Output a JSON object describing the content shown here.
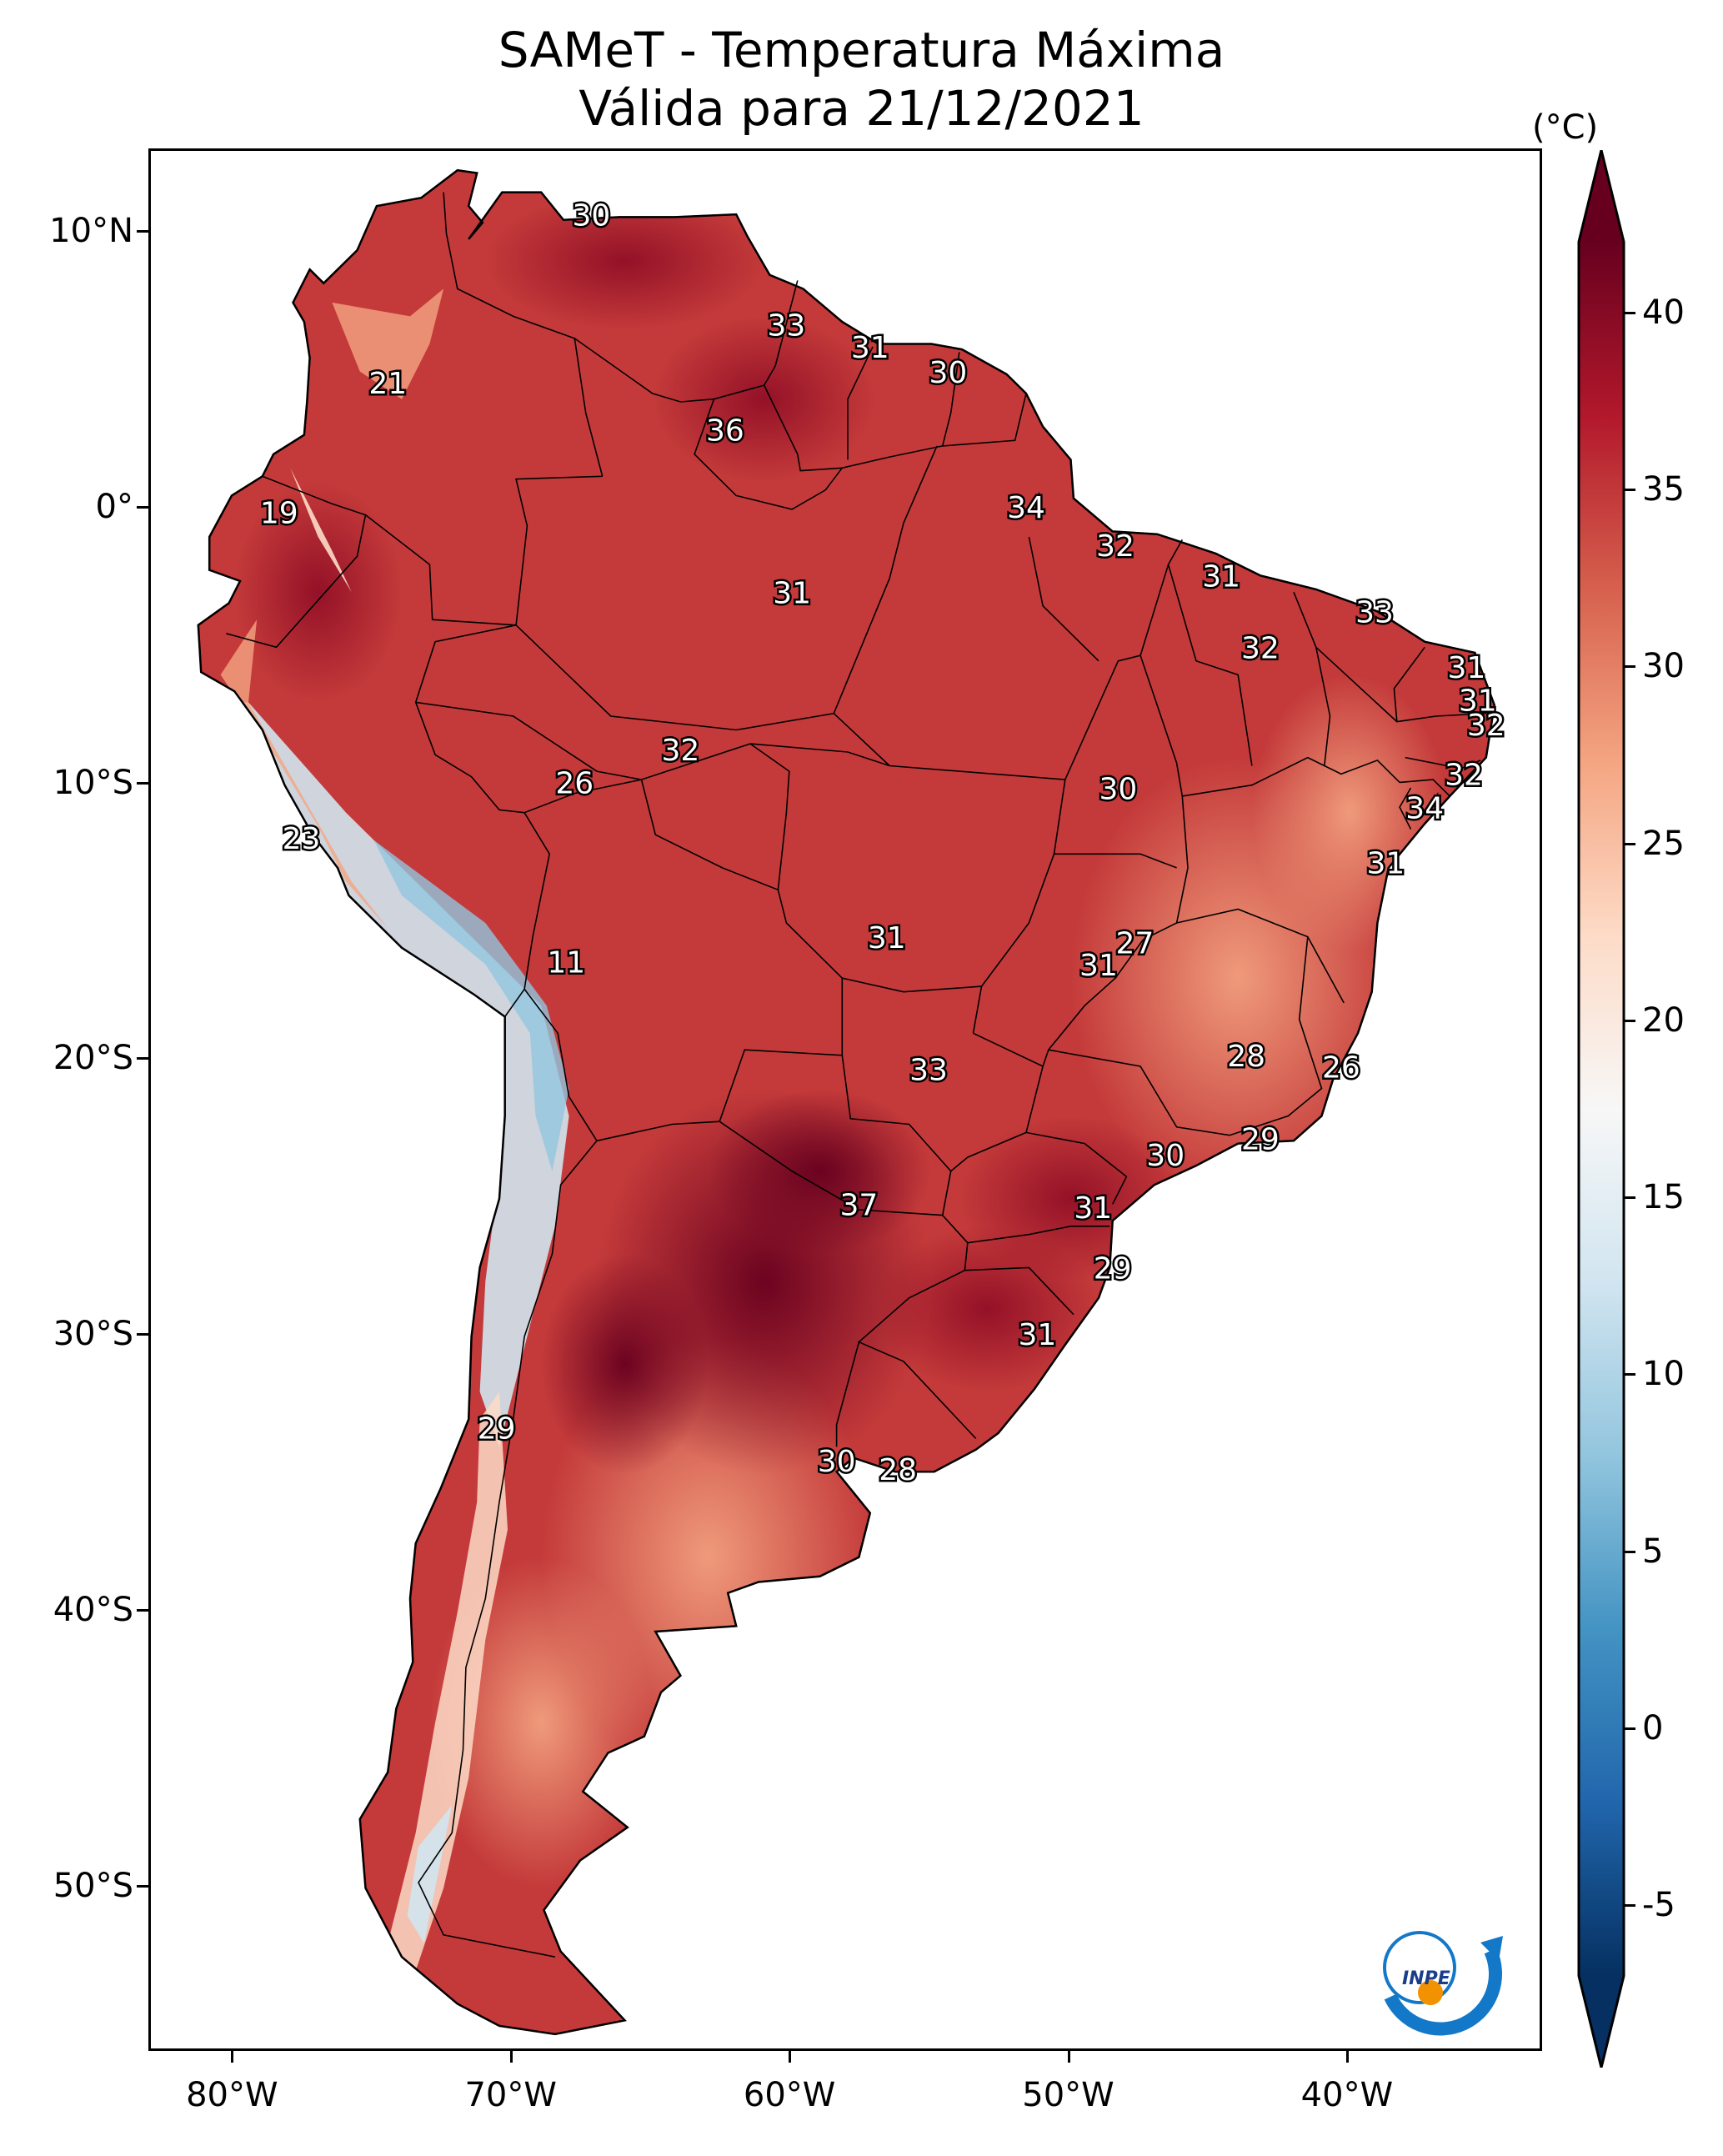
{
  "title": {
    "line1": "SAMeT - Temperatura Máxima",
    "line2": "Válida para 21/12/2021"
  },
  "map": {
    "lon_range": [
      -83,
      -33
    ],
    "lat_range": [
      -56,
      13
    ],
    "lat_ticks": [
      {
        "value": 10,
        "label": "10°N"
      },
      {
        "value": 0,
        "label": "0°"
      },
      {
        "value": -10,
        "label": "10°S"
      },
      {
        "value": -20,
        "label": "20°S"
      },
      {
        "value": -30,
        "label": "30°S"
      },
      {
        "value": -40,
        "label": "40°S"
      },
      {
        "value": -50,
        "label": "50°S"
      }
    ],
    "lon_ticks": [
      {
        "value": -80,
        "label": "80°W"
      },
      {
        "value": -70,
        "label": "70°W"
      },
      {
        "value": -60,
        "label": "60°W"
      },
      {
        "value": -50,
        "label": "50°W"
      },
      {
        "value": -40,
        "label": "40°W"
      }
    ],
    "station_values": [
      {
        "lon": -67.2,
        "lat": 10.6,
        "value": "30"
      },
      {
        "lon": -60.2,
        "lat": 6.6,
        "value": "33"
      },
      {
        "lon": -57.2,
        "lat": 5.8,
        "value": "31"
      },
      {
        "lon": -54.4,
        "lat": 4.9,
        "value": "30"
      },
      {
        "lon": -74.5,
        "lat": 4.5,
        "value": "21"
      },
      {
        "lon": -62.4,
        "lat": 2.8,
        "value": "36"
      },
      {
        "lon": -51.6,
        "lat": 0.0,
        "value": "34"
      },
      {
        "lon": -78.4,
        "lat": -0.2,
        "value": "19"
      },
      {
        "lon": -48.4,
        "lat": -1.4,
        "value": "32"
      },
      {
        "lon": -44.6,
        "lat": -2.5,
        "value": "31"
      },
      {
        "lon": -60.0,
        "lat": -3.1,
        "value": "31"
      },
      {
        "lon": -39.1,
        "lat": -3.8,
        "value": "33"
      },
      {
        "lon": -43.2,
        "lat": -5.1,
        "value": "32"
      },
      {
        "lon": -35.8,
        "lat": -5.8,
        "value": "31"
      },
      {
        "lon": -35.4,
        "lat": -7.0,
        "value": "31"
      },
      {
        "lon": -35.1,
        "lat": -7.9,
        "value": "32"
      },
      {
        "lon": -64.0,
        "lat": -8.8,
        "value": "32"
      },
      {
        "lon": -35.9,
        "lat": -9.7,
        "value": "32"
      },
      {
        "lon": -67.8,
        "lat": -10.0,
        "value": "26"
      },
      {
        "lon": -48.3,
        "lat": -10.2,
        "value": "30"
      },
      {
        "lon": -37.3,
        "lat": -10.9,
        "value": "34"
      },
      {
        "lon": -77.6,
        "lat": -12.0,
        "value": "23"
      },
      {
        "lon": -38.7,
        "lat": -12.9,
        "value": "31"
      },
      {
        "lon": -47.7,
        "lat": -15.8,
        "value": "27"
      },
      {
        "lon": -56.6,
        "lat": -15.6,
        "value": "31"
      },
      {
        "lon": -49.0,
        "lat": -16.6,
        "value": "31"
      },
      {
        "lon": -68.1,
        "lat": -16.5,
        "value": "11"
      },
      {
        "lon": -43.7,
        "lat": -19.9,
        "value": "28"
      },
      {
        "lon": -40.3,
        "lat": -20.3,
        "value": "26"
      },
      {
        "lon": -55.1,
        "lat": -20.4,
        "value": "33"
      },
      {
        "lon": -43.2,
        "lat": -22.9,
        "value": "29"
      },
      {
        "lon": -46.6,
        "lat": -23.5,
        "value": "30"
      },
      {
        "lon": -57.6,
        "lat": -25.3,
        "value": "37"
      },
      {
        "lon": -49.2,
        "lat": -25.4,
        "value": "31"
      },
      {
        "lon": -48.5,
        "lat": -27.6,
        "value": "29"
      },
      {
        "lon": -51.2,
        "lat": -30.0,
        "value": "31"
      },
      {
        "lon": -70.6,
        "lat": -33.4,
        "value": "29"
      },
      {
        "lon": -58.4,
        "lat": -34.6,
        "value": "30"
      },
      {
        "lon": -56.2,
        "lat": -34.9,
        "value": "28"
      }
    ]
  },
  "colorbar": {
    "unit": "(°C)",
    "min": -7,
    "max": 42,
    "ticks": [
      {
        "value": 40,
        "label": "40"
      },
      {
        "value": 35,
        "label": "35"
      },
      {
        "value": 30,
        "label": "30"
      },
      {
        "value": 25,
        "label": "25"
      },
      {
        "value": 20,
        "label": "20"
      },
      {
        "value": 15,
        "label": "15"
      },
      {
        "value": 10,
        "label": "10"
      },
      {
        "value": 5,
        "label": "5"
      },
      {
        "value": 0,
        "label": "0"
      },
      {
        "value": -5,
        "label": "-5"
      }
    ],
    "colors": [
      "#053061",
      "#2166ac",
      "#4393c3",
      "#92c5de",
      "#d1e5f0",
      "#f7f7f7",
      "#fddbc7",
      "#f4a582",
      "#d6604d",
      "#b2182b",
      "#67001f"
    ]
  },
  "logo": {
    "text": "INPE",
    "colors": {
      "blue": "#1478c8",
      "orange": "#f39200"
    }
  }
}
